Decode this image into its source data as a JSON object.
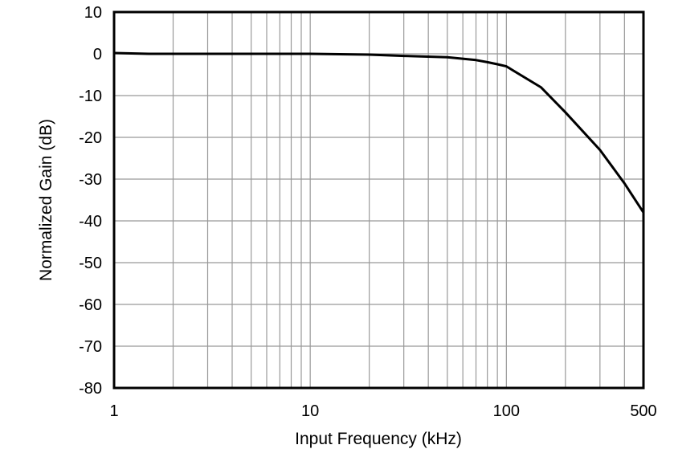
{
  "chart_data": {
    "type": "line",
    "title": "",
    "xlabel": "Input Frequency (kHz)",
    "ylabel": "Normalized Gain (dB)",
    "xscale": "log",
    "xlim": [
      1,
      500
    ],
    "ylim": [
      -80,
      10
    ],
    "grid": true,
    "legend": null,
    "x_ticks": [
      1,
      10,
      100,
      500
    ],
    "x_tick_labels": [
      "1",
      "10",
      "100",
      "500"
    ],
    "y_ticks": [
      10,
      0,
      -10,
      -20,
      -30,
      -40,
      -50,
      -60,
      -70,
      -80
    ],
    "y_tick_labels": [
      "10",
      "0",
      "-10",
      "-20",
      "-30",
      "-40",
      "-50",
      "-60",
      "-70",
      "-80"
    ],
    "series": [
      {
        "name": "Normalized Gain",
        "color": "#000000",
        "x": [
          1,
          1.5,
          5,
          10,
          20,
          30,
          50,
          70,
          80,
          90,
          100,
          150,
          200,
          300,
          400,
          500
        ],
        "values": [
          0.2,
          0,
          0,
          0,
          -0.2,
          -0.5,
          -0.8,
          -1.5,
          -2,
          -2.5,
          -3,
          -8,
          -14,
          -23,
          -31,
          -38
        ]
      }
    ]
  },
  "colors": {
    "grid": "#999999",
    "frame": "#000000",
    "line": "#000000",
    "background": "#ffffff"
  }
}
